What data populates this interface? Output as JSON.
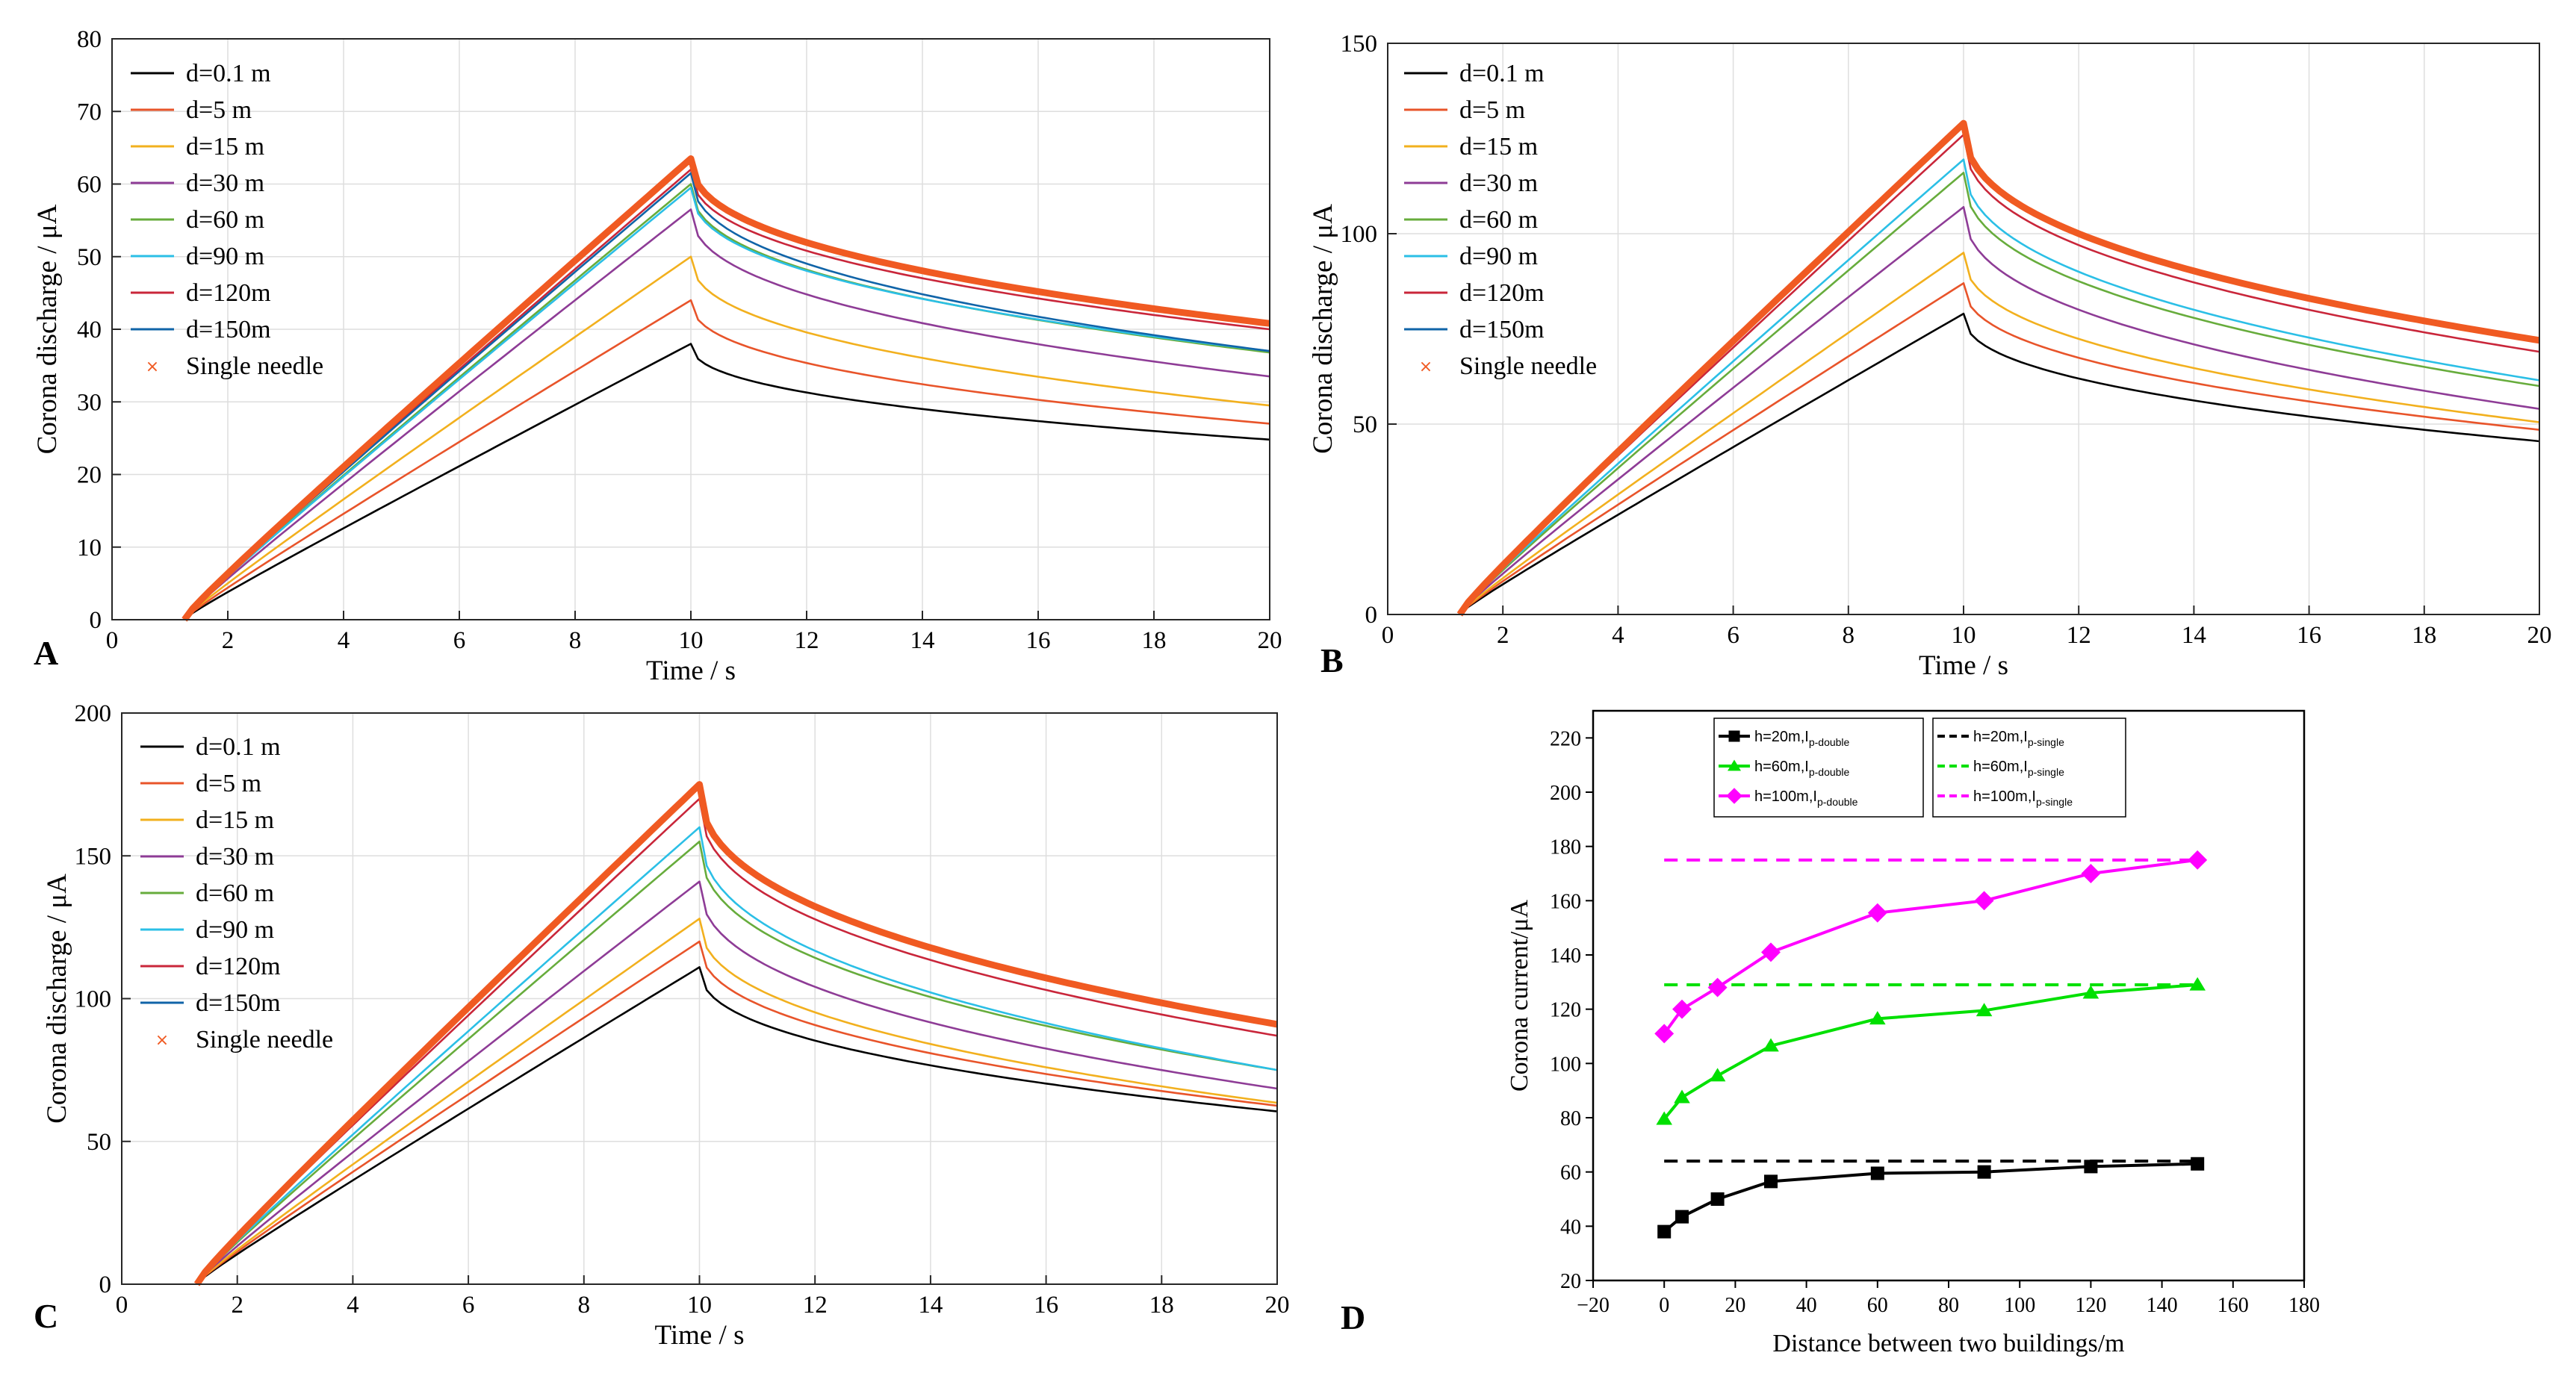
{
  "figure": {
    "colors": {
      "d0_1": "#000000",
      "d5": "#e8542a",
      "d15": "#f2b01e",
      "d30": "#8e3c96",
      "d60": "#67ac3c",
      "d90": "#2bbfe6",
      "d120": "#c9263a",
      "d150": "#1064a8",
      "single": "#f05a22",
      "black": "#000000",
      "green": "#00e000",
      "magenta": "#ff00ff"
    }
  },
  "chart_data": [
    {
      "panel": "A",
      "type": "line",
      "xlabel": "Time / s",
      "ylabel": "Corona discharge / μA",
      "xlim": [
        0,
        20
      ],
      "ylim": [
        0,
        80
      ],
      "xticks": [
        0,
        2,
        4,
        6,
        8,
        10,
        12,
        14,
        16,
        18,
        20
      ],
      "yticks": [
        0,
        10,
        20,
        30,
        40,
        50,
        60,
        70,
        80
      ],
      "legend_position": "top-left",
      "peak_time": 10,
      "onset_time": 1.25,
      "series": [
        {
          "name": "d=0.1 m",
          "color_key": "d0_1",
          "peak": 38,
          "end": 24.8
        },
        {
          "name": "d=5 m",
          "color_key": "d5",
          "peak": 44,
          "end": 27
        },
        {
          "name": "d=15 m",
          "color_key": "d15",
          "peak": 50,
          "end": 29.5
        },
        {
          "name": "d=30 m",
          "color_key": "d30",
          "peak": 56.5,
          "end": 33.5
        },
        {
          "name": "d=60 m",
          "color_key": "d60",
          "peak": 60,
          "end": 36.8
        },
        {
          "name": "d=90 m",
          "color_key": "d90",
          "peak": 59.5,
          "end": 37
        },
        {
          "name": "d=120m",
          "color_key": "d120",
          "peak": 62,
          "end": 40
        },
        {
          "name": "d=150m",
          "color_key": "d150",
          "peak": 61.5,
          "end": 37
        },
        {
          "name": "Single needle",
          "color_key": "single",
          "peak": 63.5,
          "end": 40.8,
          "thick": true
        }
      ]
    },
    {
      "panel": "B",
      "type": "line",
      "xlabel": "Time / s",
      "ylabel": "Corona discharge / μA",
      "xlim": [
        0,
        20
      ],
      "ylim": [
        0,
        150
      ],
      "xticks": [
        0,
        2,
        4,
        6,
        8,
        10,
        12,
        14,
        16,
        18,
        20
      ],
      "yticks": [
        0,
        50,
        100,
        150
      ],
      "legend_position": "top-left",
      "peak_time": 10,
      "onset_time": 1.25,
      "series": [
        {
          "name": "d=0.1 m",
          "color_key": "d0_1",
          "peak": 79,
          "end": 45.5
        },
        {
          "name": "d=5 m",
          "color_key": "d5",
          "peak": 87,
          "end": 48.5
        },
        {
          "name": "d=15 m",
          "color_key": "d15",
          "peak": 95,
          "end": 50.5
        },
        {
          "name": "d=30 m",
          "color_key": "d30",
          "peak": 107,
          "end": 54
        },
        {
          "name": "d=60 m",
          "color_key": "d60",
          "peak": 116,
          "end": 60
        },
        {
          "name": "d=90 m",
          "color_key": "d90",
          "peak": 119.5,
          "end": 61.5
        },
        {
          "name": "d=120m",
          "color_key": "d120",
          "peak": 126,
          "end": 69
        },
        {
          "name": "d=150m",
          "color_key": "d150",
          "peak": 129,
          "end": 72
        },
        {
          "name": "Single needle",
          "color_key": "single",
          "peak": 129,
          "end": 72,
          "thick": true
        }
      ]
    },
    {
      "panel": "C",
      "type": "line",
      "xlabel": "Time / s",
      "ylabel": "Corona discharge / μA",
      "xlim": [
        0,
        20
      ],
      "ylim": [
        0,
        200
      ],
      "xticks": [
        0,
        2,
        4,
        6,
        8,
        10,
        12,
        14,
        16,
        18,
        20
      ],
      "yticks": [
        0,
        50,
        100,
        150,
        200
      ],
      "legend_position": "top-left",
      "peak_time": 10,
      "onset_time": 1.3,
      "series": [
        {
          "name": "d=0.1 m",
          "color_key": "d0_1",
          "peak": 111,
          "end": 60.5
        },
        {
          "name": "d=5 m",
          "color_key": "d5",
          "peak": 120,
          "end": 62.5
        },
        {
          "name": "d=15 m",
          "color_key": "d15",
          "peak": 128,
          "end": 63.5
        },
        {
          "name": "d=30 m",
          "color_key": "d30",
          "peak": 141,
          "end": 68.5
        },
        {
          "name": "d=60 m",
          "color_key": "d60",
          "peak": 155,
          "end": 75
        },
        {
          "name": "d=90 m",
          "color_key": "d90",
          "peak": 160,
          "end": 75
        },
        {
          "name": "d=120m",
          "color_key": "d120",
          "peak": 170,
          "end": 87
        },
        {
          "name": "d=150m",
          "color_key": "d150",
          "peak": 175,
          "end": 91
        },
        {
          "name": "Single needle",
          "color_key": "single",
          "peak": 175,
          "end": 91,
          "thick": true
        }
      ]
    },
    {
      "panel": "D",
      "type": "line",
      "xlabel": "Distance between two buildings/m",
      "ylabel": "Corona current/μA",
      "xlim": [
        -20,
        180
      ],
      "ylim": [
        20,
        230
      ],
      "xticks": [
        -20,
        0,
        20,
        40,
        60,
        80,
        100,
        120,
        140,
        160,
        180
      ],
      "yticks": [
        20,
        40,
        60,
        80,
        100,
        120,
        140,
        160,
        180,
        200,
        220
      ],
      "legend_position": "top",
      "x": [
        0,
        5,
        15,
        30,
        60,
        90,
        120,
        150
      ],
      "series": [
        {
          "name": "h=20m,I",
          "sub": "p-double",
          "color_key": "black",
          "marker": "square",
          "values": [
            38,
            43.5,
            50,
            56.5,
            59.5,
            60,
            62,
            63
          ]
        },
        {
          "name": "h=60m,I",
          "sub": "p-double",
          "color_key": "green",
          "marker": "triangle",
          "values": [
            79.5,
            87.5,
            95.5,
            106.5,
            116.5,
            119.5,
            126,
            129
          ]
        },
        {
          "name": "h=100m,I",
          "sub": "p-double",
          "color_key": "magenta",
          "marker": "diamond",
          "values": [
            111,
            120,
            128,
            141,
            155.5,
            160,
            170,
            175
          ]
        }
      ],
      "reference_lines": [
        {
          "name": "h=20m,I",
          "sub": "p-single",
          "color_key": "black",
          "value": 64,
          "x_range": [
            0,
            150
          ]
        },
        {
          "name": "h=60m,I",
          "sub": "p-single",
          "color_key": "green",
          "value": 129,
          "x_range": [
            0,
            150
          ]
        },
        {
          "name": "h=100m,I",
          "sub": "p-single",
          "color_key": "magenta",
          "value": 175,
          "x_range": [
            0,
            150
          ]
        }
      ]
    }
  ]
}
